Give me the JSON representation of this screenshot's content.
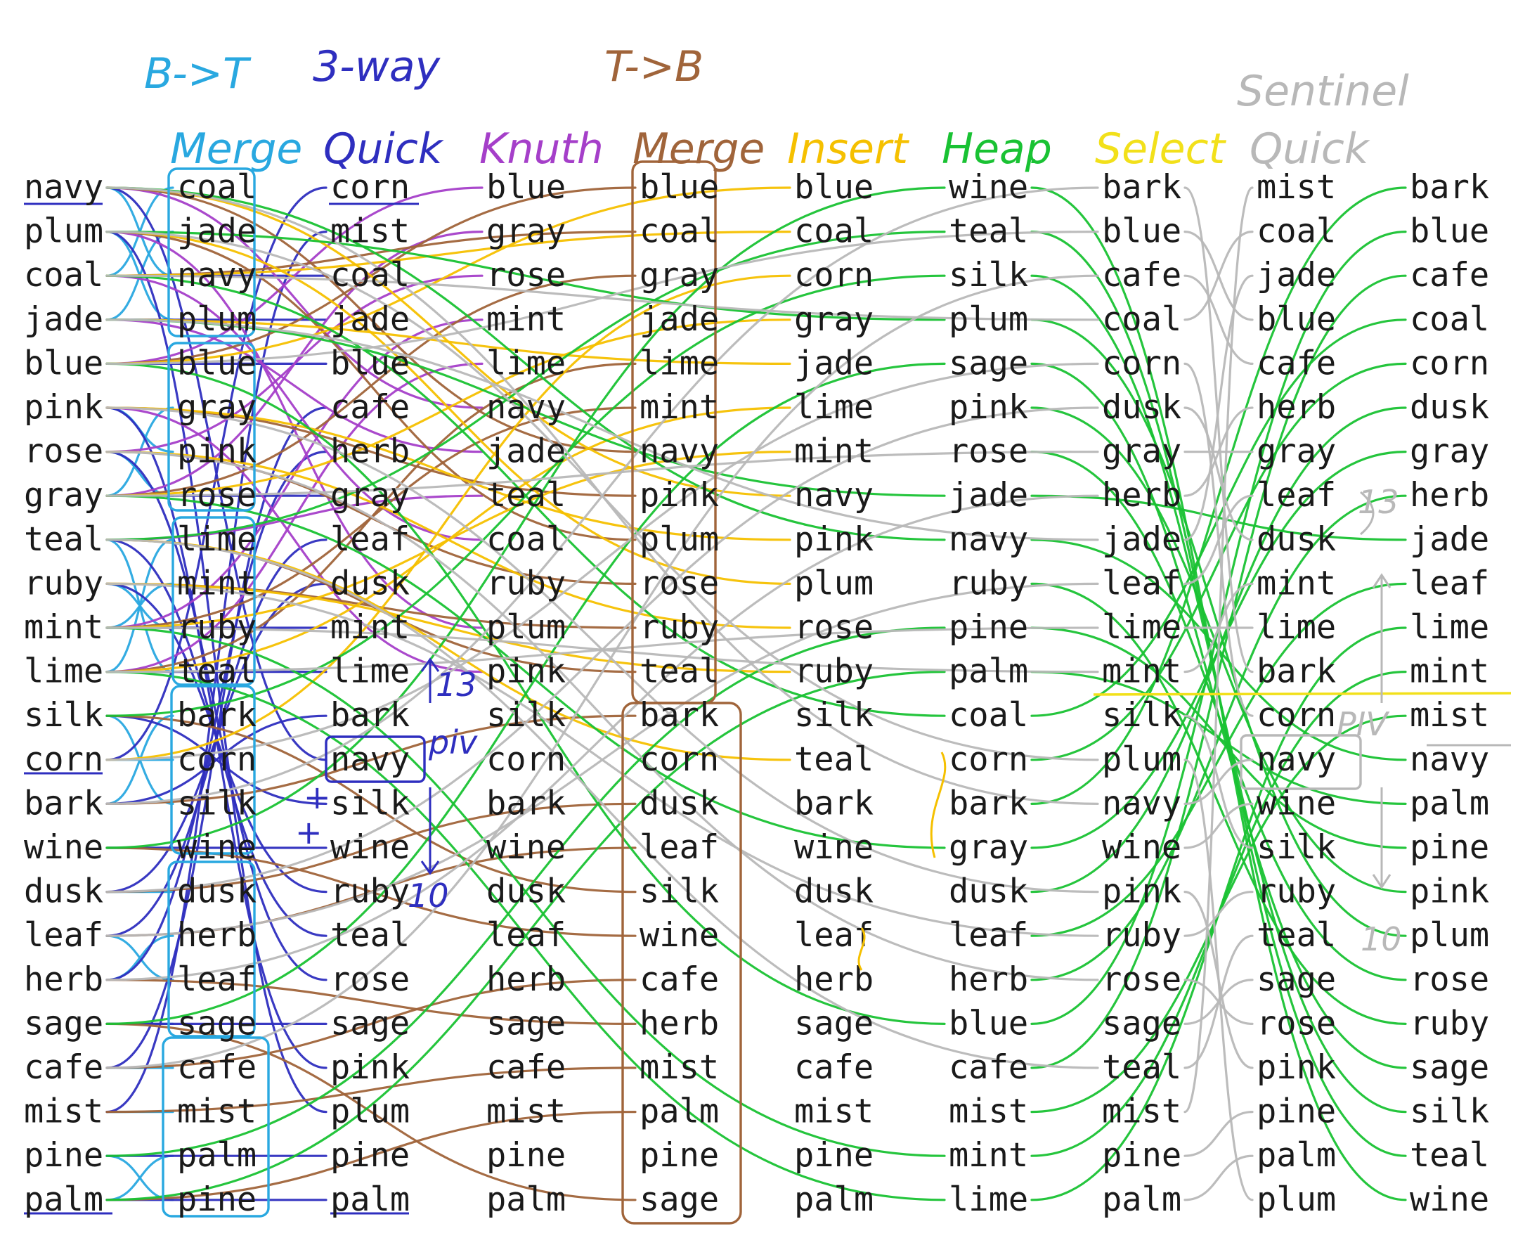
{
  "headers": {
    "bt": "B->T",
    "three_way": "3-way",
    "tb": "T->B",
    "sentinel": "Sentinel"
  },
  "column_labels": [
    "",
    "Merge",
    "Quick",
    "Knuth",
    "Merge",
    "Insert",
    "Heap",
    "Select",
    "Quick",
    ""
  ],
  "columns": [
    [
      "navy",
      "plum",
      "coal",
      "jade",
      "blue",
      "pink",
      "rose",
      "gray",
      "teal",
      "ruby",
      "mint",
      "lime",
      "silk",
      "corn",
      "bark",
      "wine",
      "dusk",
      "leaf",
      "herb",
      "sage",
      "cafe",
      "mist",
      "pine",
      "palm"
    ],
    [
      "coal",
      "jade",
      "navy",
      "plum",
      "blue",
      "gray",
      "pink",
      "rose",
      "lime",
      "mint",
      "ruby",
      "teal",
      "bark",
      "corn",
      "silk",
      "wine",
      "dusk",
      "herb",
      "leaf",
      "sage",
      "cafe",
      "mist",
      "palm",
      "pine"
    ],
    [
      "corn",
      "mist",
      "coal",
      "jade",
      "blue",
      "cafe",
      "herb",
      "gray",
      "leaf",
      "dusk",
      "mint",
      "lime",
      "bark",
      "navy",
      "silk",
      "wine",
      "ruby",
      "teal",
      "rose",
      "sage",
      "pink",
      "plum",
      "pine",
      "palm"
    ],
    [
      "blue",
      "gray",
      "rose",
      "mint",
      "lime",
      "navy",
      "jade",
      "teal",
      "coal",
      "ruby",
      "plum",
      "pink",
      "silk",
      "corn",
      "bark",
      "wine",
      "dusk",
      "leaf",
      "herb",
      "sage",
      "cafe",
      "mist",
      "pine",
      "palm"
    ],
    [
      "blue",
      "coal",
      "gray",
      "jade",
      "lime",
      "mint",
      "navy",
      "pink",
      "plum",
      "rose",
      "ruby",
      "teal",
      "bark",
      "corn",
      "dusk",
      "leaf",
      "silk",
      "wine",
      "cafe",
      "herb",
      "mist",
      "palm",
      "pine",
      "sage"
    ],
    [
      "blue",
      "coal",
      "corn",
      "gray",
      "jade",
      "lime",
      "mint",
      "navy",
      "pink",
      "plum",
      "rose",
      "ruby",
      "silk",
      "teal",
      "bark",
      "wine",
      "dusk",
      "leaf",
      "herb",
      "sage",
      "cafe",
      "mist",
      "pine",
      "palm"
    ],
    [
      "wine",
      "teal",
      "silk",
      "plum",
      "sage",
      "pink",
      "rose",
      "jade",
      "navy",
      "ruby",
      "pine",
      "palm",
      "coal",
      "corn",
      "bark",
      "gray",
      "dusk",
      "leaf",
      "herb",
      "blue",
      "cafe",
      "mist",
      "mint",
      "lime"
    ],
    [
      "bark",
      "blue",
      "cafe",
      "coal",
      "corn",
      "dusk",
      "gray",
      "herb",
      "jade",
      "leaf",
      "lime",
      "mint",
      "silk",
      "plum",
      "navy",
      "wine",
      "pink",
      "ruby",
      "rose",
      "sage",
      "teal",
      "mist",
      "pine",
      "palm"
    ],
    [
      "mist",
      "coal",
      "jade",
      "blue",
      "cafe",
      "herb",
      "gray",
      "leaf",
      "dusk",
      "mint",
      "lime",
      "bark",
      "corn",
      "navy",
      "wine",
      "silk",
      "ruby",
      "teal",
      "sage",
      "rose",
      "pink",
      "pine",
      "palm",
      "plum"
    ],
    [
      "bark",
      "blue",
      "cafe",
      "coal",
      "corn",
      "dusk",
      "gray",
      "herb",
      "jade",
      "leaf",
      "lime",
      "mint",
      "mist",
      "navy",
      "palm",
      "pine",
      "pink",
      "plum",
      "rose",
      "ruby",
      "sage",
      "silk",
      "teal",
      "wine"
    ]
  ],
  "annotations": {
    "n13_a": "13",
    "piv_a": "piv",
    "n10_a": "10",
    "n13_b": "13",
    "piv_b": "PIV",
    "n10_b": "10",
    "plus_a": "+",
    "plus_b": "+",
    "tick": "·"
  },
  "colors": {
    "merge_bt": "#29a8e0",
    "quick": "#2e2ebf",
    "knuth": "#a53fc9",
    "merge_tb": "#a0643a",
    "insert": "#f5c000",
    "heap": "#19c233",
    "select": "#f2e01a",
    "sentinel": "#b8b8b8"
  }
}
